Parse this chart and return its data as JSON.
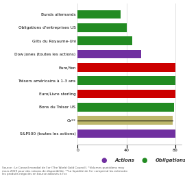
{
  "categories": [
    "S&P500 (toutes les actions)",
    "Or**",
    "Bons du Trésor US",
    "Euro/Livre sterling",
    "Trésors américains à 1-3 ans",
    "Euro/Yen",
    "Dow Jones (toutes les actions)",
    "Gilts du Royaume-Uni",
    "Obligations d'entreprises US",
    "Bunds allemands"
  ],
  "values": [
    80,
    78,
    79,
    80,
    80,
    80,
    52,
    45,
    40,
    35
  ],
  "colors": [
    "#7030a0",
    "#bdb76b",
    "#228B22",
    "#cc0000",
    "#228B22",
    "#cc0000",
    "#7030a0",
    "#228B22",
    "#228B22",
    "#228B22"
  ],
  "or_black_line": true,
  "xlim_max": 85,
  "xticks": [
    0,
    40,
    80
  ],
  "legend_items": [
    {
      "label": "Actions",
      "color": "#7030a0"
    },
    {
      "label": "Obligations",
      "color": "#228B22"
    }
  ],
  "source_text": "Source : Le Conseil mondial de l'or (The World Gold Council). *Volumes quotidiens moy\nmars 2019 pour des raisons de disponibilité. **La liquidité de l'or comprend les estimatio\nles produits négociés en bourse adossés à l'or.",
  "bg_color": "#ffffff",
  "bar_height": 0.65,
  "figsize": [
    2.7,
    2.7
  ],
  "dpi": 100
}
